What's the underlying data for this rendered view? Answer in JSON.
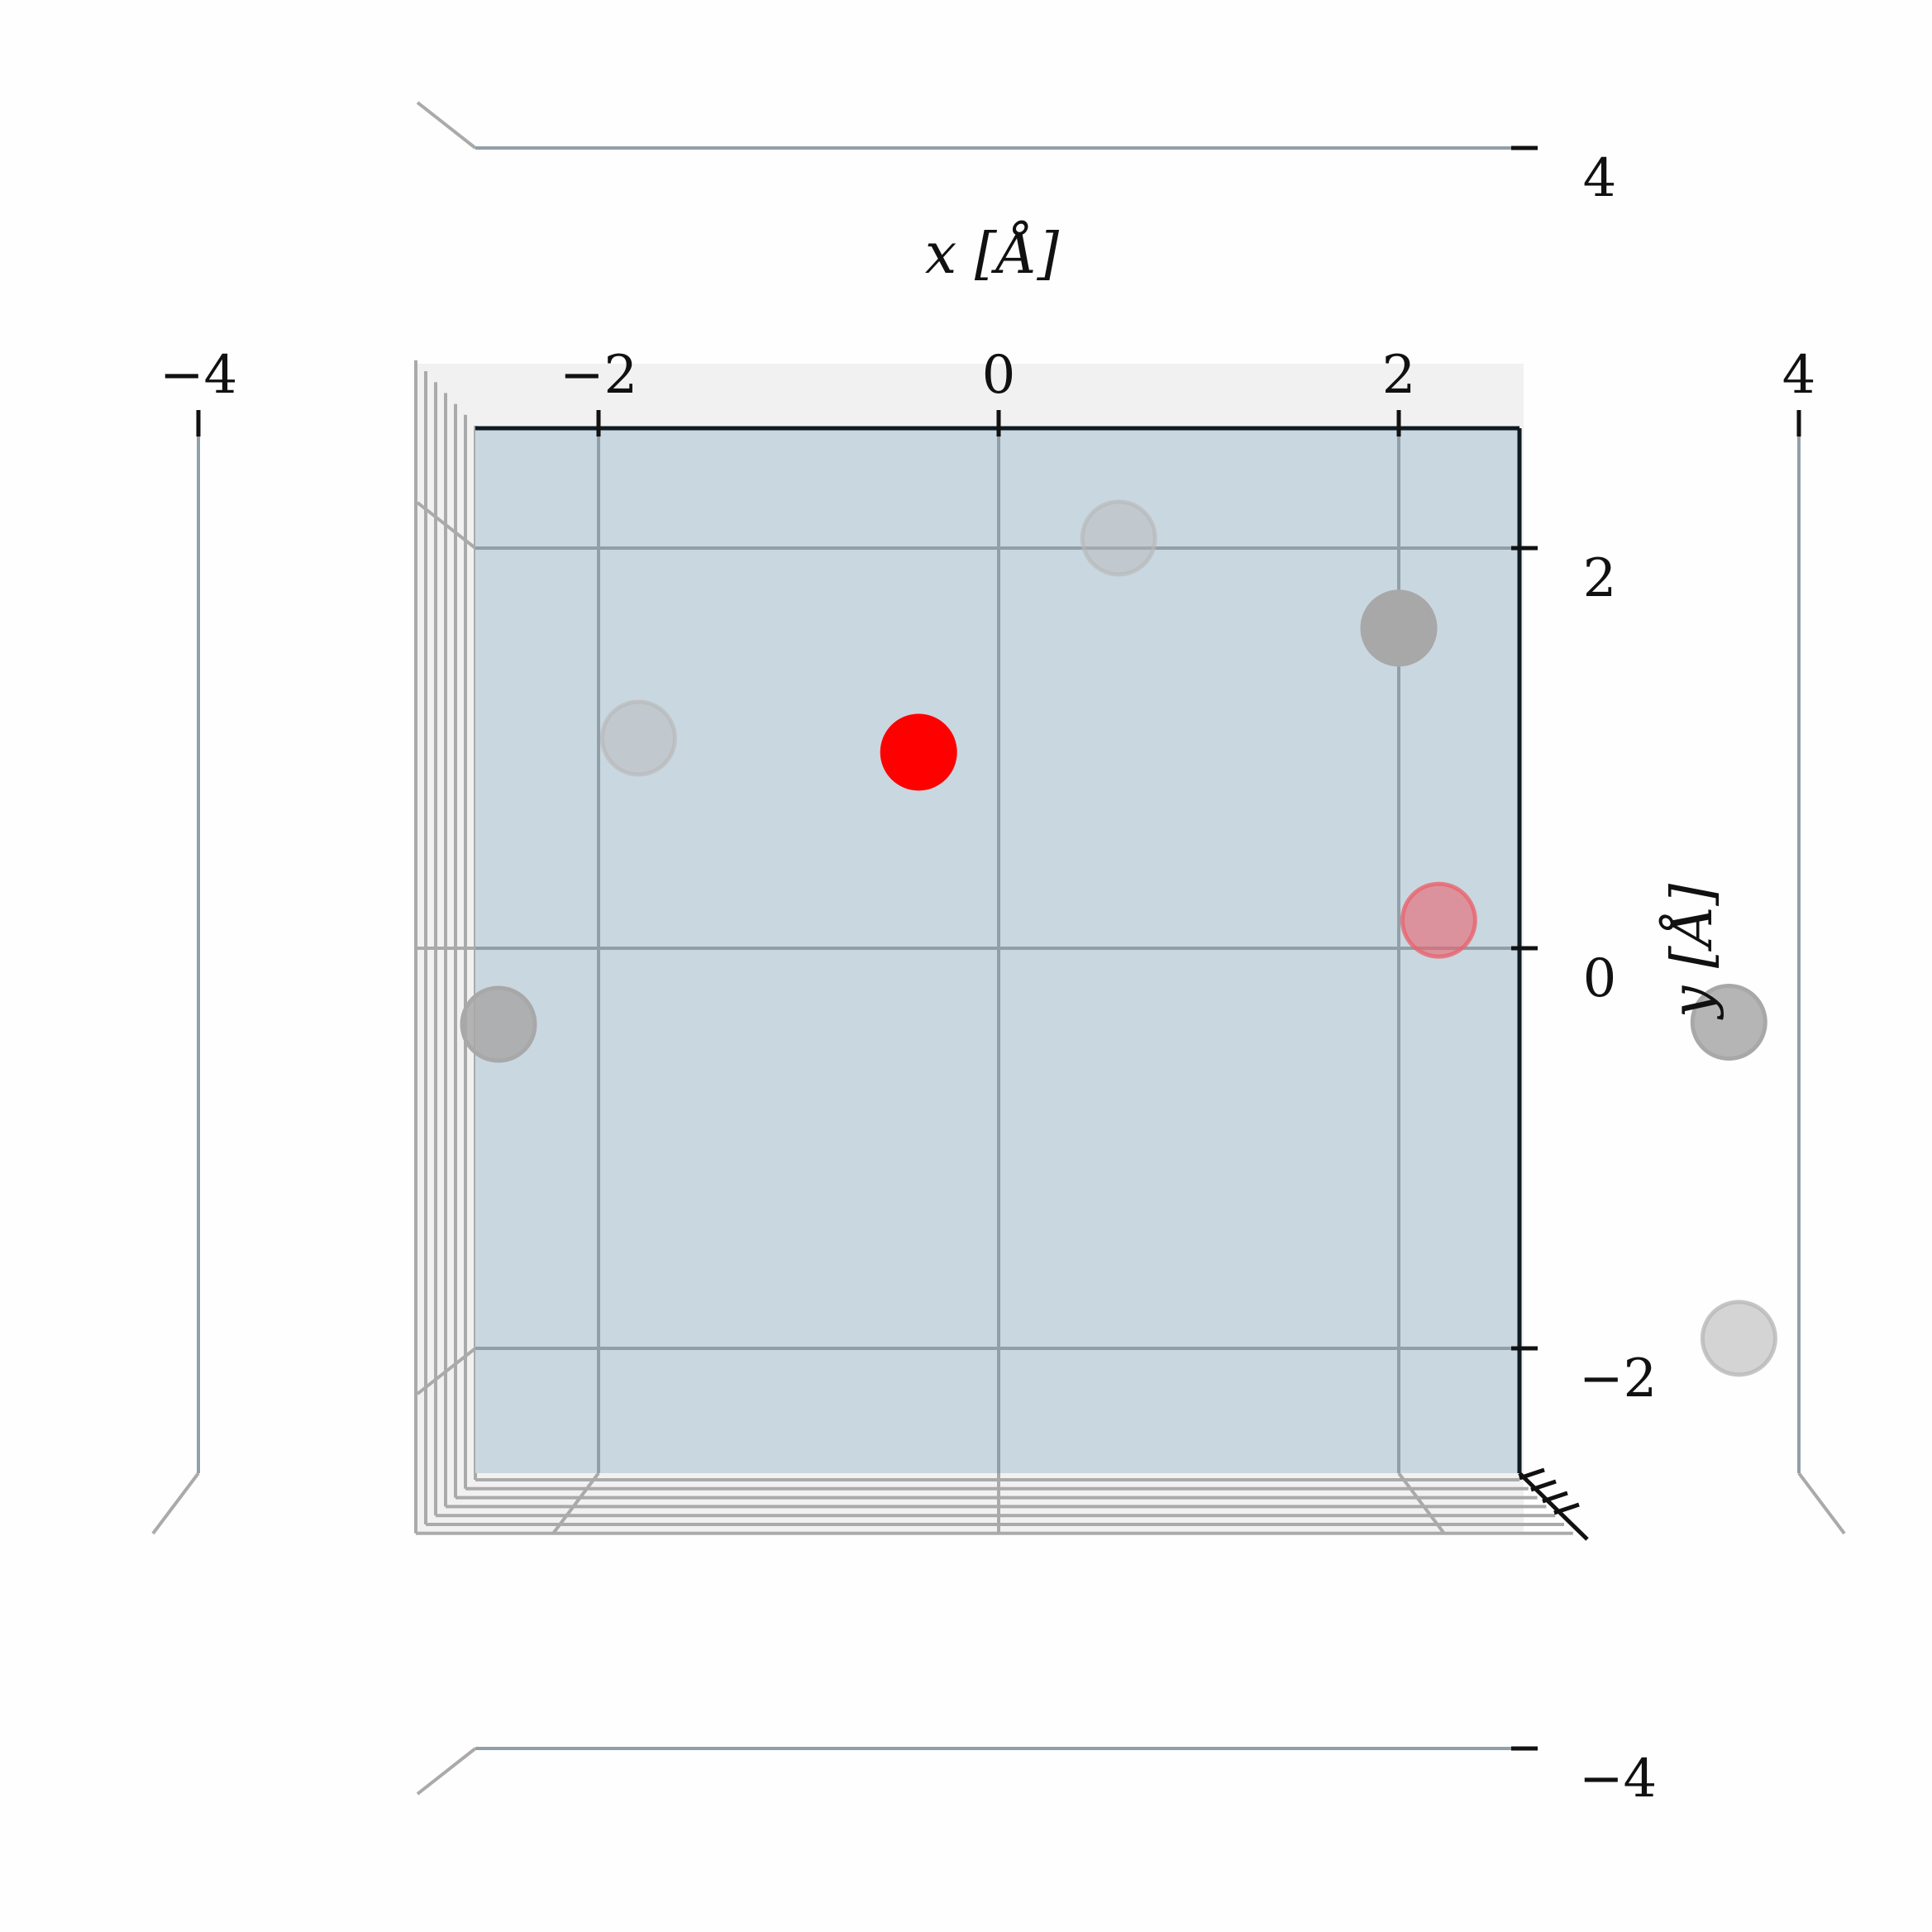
{
  "chart_data": {
    "type": "scatter",
    "view": "3d-top",
    "xlabel": "x [Å]",
    "ylabel": "y [Å]",
    "xlim": [
      -5.3,
      5.3
    ],
    "ylim": [
      -5.3,
      5.3
    ],
    "xticks": [
      -4,
      -2,
      0,
      2,
      4
    ],
    "yticks": [
      -4,
      -2,
      0,
      2,
      4
    ],
    "xtick_labels": [
      "−4",
      "−2",
      "0",
      "2",
      "4"
    ],
    "ytick_labels": [
      "−4",
      "−2",
      "0",
      "2",
      "4"
    ],
    "grid": true,
    "pane_color": "#c9d7e0",
    "points": [
      {
        "x": 0.6,
        "y": 2.05,
        "color": "#b8b8b8",
        "opacity": 0.45
      },
      {
        "x": -1.8,
        "y": 1.05,
        "color": "#b8b8b8",
        "opacity": 0.45
      },
      {
        "x": 2.0,
        "y": 1.6,
        "color": "#a8a8a8",
        "opacity": 1.0
      },
      {
        "x": -0.4,
        "y": 0.98,
        "color": "#ff0000",
        "opacity": 1.0
      },
      {
        "x": 2.2,
        "y": 0.14,
        "color": "#e8646e",
        "opacity": 0.6
      },
      {
        "x": -2.5,
        "y": -0.38,
        "color": "#a8a8a8",
        "opacity": 0.85
      },
      {
        "x": 3.65,
        "y": -0.37,
        "color": "#a8a8a8",
        "opacity": 0.85
      },
      {
        "x": 3.7,
        "y": -1.95,
        "color": "#b8b8b8",
        "opacity": 0.6
      }
    ]
  }
}
